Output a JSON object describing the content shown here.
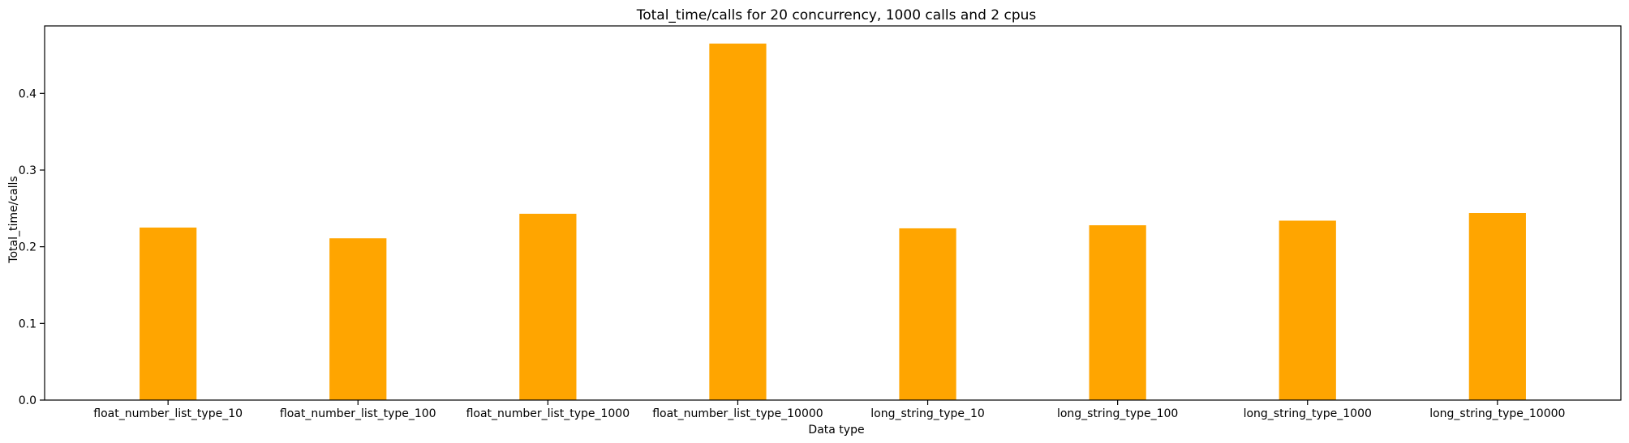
{
  "chart_data": {
    "type": "bar",
    "title": "Total_time/calls for 20 concurrency, 1000 calls and 2 cpus",
    "xlabel": "Data type",
    "ylabel": "Total_time/calls",
    "categories": [
      "float_number_list_type_10",
      "float_number_list_type_100",
      "float_number_list_type_1000",
      "float_number_list_type_10000",
      "long_string_type_10",
      "long_string_type_100",
      "long_string_type_1000",
      "long_string_type_10000"
    ],
    "values": [
      0.225,
      0.211,
      0.243,
      0.465,
      0.224,
      0.228,
      0.234,
      0.244
    ],
    "ylim": [
      0,
      0.488
    ],
    "yticks": [
      0.0,
      0.1,
      0.2,
      0.3,
      0.4
    ],
    "ytick_labels": [
      "0.0",
      "0.1",
      "0.2",
      "0.3",
      "0.4"
    ],
    "bar_color": "#ffa500",
    "grid": false,
    "legend": false
  }
}
